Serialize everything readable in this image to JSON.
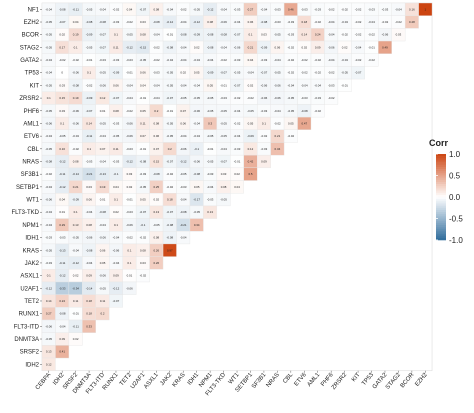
{
  "chart_data": {
    "type": "heatmap",
    "layout": "lower-triangle correlation matrix",
    "rows": [
      "NF1",
      "EZH2",
      "BCOR",
      "STAG2",
      "GATA2",
      "TP53",
      "KIT",
      "ZRSR2",
      "PHF6",
      "AML1",
      "ETV6",
      "CBL",
      "NRAS",
      "SF3B1",
      "SETBP1",
      "WT1",
      "FLT3-TKD",
      "NPM1",
      "IDH1",
      "KRAS",
      "JAK2",
      "ASXL1",
      "U2AF1",
      "TET2",
      "RUNX1",
      "FLT3-ITD",
      "DNMT3A",
      "SRSF2",
      "IDH2"
    ],
    "columns": [
      "CEBPA",
      "IDH2",
      "SRSF2",
      "DNMT3A",
      "FLT3-ITD",
      "RUNX1",
      "TET2",
      "U2AF1",
      "ASXL1",
      "JAK2",
      "KRAS",
      "IDH1",
      "NPM1",
      "FLT3-TKD",
      "WT1",
      "SETBP1",
      "SF3B1",
      "NRAS",
      "CBL",
      "ETV6",
      "AML1",
      "PHF6",
      "ZRSR2",
      "KIT",
      "TP53",
      "GATA2",
      "STAG2",
      "BCOR",
      "EZH2"
    ],
    "values": [
      [
        -0.04,
        -0.08,
        -0.11,
        -0.05,
        -0.04,
        -0.02,
        0.04,
        -0.07,
        0.08,
        -0.04,
        -0.02,
        -0.05,
        -0.12,
        -0.04,
        -0.03,
        0.27,
        -0.04,
        -0.03,
        0.46,
        -0.03,
        -0.03,
        -0.02,
        -0.02,
        -0.02,
        -0.03,
        -0.03,
        -0.04,
        0.16,
        1
      ],
      [
        -0.05,
        -0.07,
        0.04,
        -0.08,
        -0.08,
        -0.03,
        -0.02,
        0.03,
        -0.08,
        -0.12,
        -0.04,
        -0.12,
        0.08,
        -0.06,
        -0.04,
        0.06,
        -0.08,
        -0.03,
        -0.03,
        0.18,
        -0.02,
        -0.04,
        -0.04,
        -0.02,
        -0.04,
        -0.02,
        -0.02,
        0.28
      ],
      [
        -0.05,
        0.02,
        0.19,
        -0.09,
        -0.07,
        0.1,
        -0.05,
        0.08,
        -0.04,
        -0.01,
        -0.08,
        -0.09,
        -0.08,
        -0.08,
        -0.07,
        0.1,
        0.03,
        -0.05,
        -0.03,
        0.14,
        0.24,
        -0.04,
        -0.02,
        -0.02,
        -0.02,
        -0.06,
        0.03
      ],
      [
        -0.05,
        0.17,
        0.1,
        -0.05,
        -0.07,
        0.11,
        -0.12,
        -0.15,
        -0.02,
        -0.08,
        -0.04,
        0.02,
        -0.08,
        -0.04,
        -0.06,
        0.21,
        -0.09,
        0.06,
        -0.02,
        0.02,
        0.09,
        -0.06,
        0.02,
        -0.04,
        -0.01,
        0.49
      ],
      [
        -0.04,
        -0.02,
        -0.02,
        -0.01,
        -0.03,
        -0.03,
        -0.03,
        -0.05,
        -0.02,
        -0.04,
        -0.04,
        -0.04,
        -0.04,
        -0.02,
        -0.03,
        0.04,
        -0.03,
        -0.04,
        -0.02,
        -0.02,
        -0.02,
        -0.04,
        -0.04,
        -0.02,
        -0.02
      ],
      [
        -0.04,
        0,
        -0.06,
        0.1,
        -0.05,
        -0.09,
        -0.01,
        0.06,
        -0.03,
        -0.05,
        0.02,
        0.05,
        -0.09,
        -0.07,
        -0.05,
        -0.04,
        -0.07,
        -0.05,
        -0.02,
        -0.02,
        -0.02,
        -0.02,
        -0.05,
        -0.07
      ],
      [
        -0.05,
        0.03,
        -0.08,
        -0.02,
        -0.06,
        0.06,
        -0.04,
        0.04,
        -0.04,
        -0.05,
        -0.04,
        -0.04,
        0.05,
        -0.01,
        -0.07,
        0.02,
        -0.06,
        -0.06,
        -0.04,
        -0.04,
        -0.04,
        -0.03,
        -0.01
      ],
      [
        0.1,
        0.15,
        0.19,
        -0.09,
        0.12,
        -0.07,
        -0.04,
        -0.01,
        -0.04,
        -0.07,
        -0.05,
        -0.05,
        -0.05,
        -0.03,
        -0.02,
        -0.02,
        -0.06,
        -0.06,
        -0.05,
        -0.03,
        -0.03,
        -0.02
      ],
      [
        -0.05,
        0.03,
        -0.06,
        -0.07,
        0.01,
        0.08,
        -0.02,
        0.05,
        0.2,
        -0.01,
        0.07,
        -0.06,
        -0.05,
        -0.05,
        -0.04,
        -0.05,
        -0.03,
        -0.04,
        -0.05,
        -0.08,
        -0.02
      ],
      [
        -0.06,
        0.1,
        -0.06,
        0.14,
        -0.05,
        -0.03,
        -0.06,
        0.11,
        0.08,
        -0.05,
        0.06,
        -0.04,
        0.3,
        -0.05,
        -0.02,
        0.05,
        0.1,
        -0.02,
        0.05,
        0.47
      ],
      [
        -0.04,
        -0.05,
        -0.04,
        -0.11,
        -0.04,
        -0.05,
        -0.06,
        0.07,
        0.06,
        -0.05,
        -0.04,
        -0.04,
        -0.05,
        -0.05,
        -0.04,
        -0.09,
        -0.02,
        0.21,
        -0.02
      ],
      [
        -0.05,
        0.16,
        -0.02,
        0.1,
        0.07,
        0.11,
        -0.03,
        -0.01,
        0.07,
        0.2,
        -0.06,
        -0.1,
        -0.01,
        -0.04,
        -0.03,
        0.12,
        -0.03,
        0.34
      ],
      [
        -0.08,
        -0.12,
        0.08,
        -0.03,
        -0.04,
        -0.03,
        -0.12,
        -0.08,
        0.15,
        -0.07,
        -0.12,
        -0.06,
        -0.05,
        -0.07,
        -0.01,
        0.42,
        0.09
      ],
      [
        -0.02,
        -0.11,
        -0.14,
        -0.21,
        -0.13,
        -0.1,
        0.03,
        -0.03,
        -0.08,
        -0.02,
        -0.05,
        -0.08,
        -0.03,
        0.03,
        0.02,
        0.5
      ],
      [
        -0.04,
        -0.12,
        0.21,
        0.03,
        0.19,
        0.04,
        0.02,
        -0.05,
        0.25,
        -0.02,
        -0.03,
        0.05,
        -0.04,
        0.08,
        0.04
      ],
      [
        -0.06,
        0.04,
        -0.09,
        0.06,
        0.01,
        0.1,
        -0.01,
        0.05,
        0.02,
        0.18,
        -0.04,
        -0.17,
        -0.03,
        -0.05
      ],
      [
        -0.04,
        0.01,
        0.1,
        -0.04,
        -0.08,
        0.02,
        -0.03,
        -0.07,
        0.13,
        -0.07,
        -0.08,
        -0.05,
        0.13
      ],
      [
        -0.04,
        0.29,
        0.13,
        0.08,
        -0.04,
        0.1,
        -0.06,
        -0.1,
        -0.05,
        -0.08,
        -0.21,
        0.34
      ],
      [
        -0.03,
        -0.03,
        -0.05,
        -0.06,
        -0.06,
        -0.04,
        -0.02,
        -0.02,
        0.08,
        -0.08,
        -0.04
      ],
      [
        -0.05,
        -0.13,
        -0.04,
        -0.08,
        0.06,
        -0.06,
        0.1,
        0.08,
        0.26,
        0.97
      ],
      [
        -0.03,
        -0.11,
        -0.12,
        -0.04,
        0.05,
        -0.04,
        0.1,
        0.03,
        0.26
      ],
      [
        0.1,
        -0.12,
        0.02,
        0.09,
        -0.06,
        0.09,
        0.01,
        -0.02
      ],
      [
        -0.12,
        -0.33,
        -0.34,
        -0.14,
        -0.05,
        -0.12,
        -0.06
      ],
      [
        0.14,
        0.24,
        0.11,
        0.18,
        0.11,
        -0.07
      ],
      [
        0.27,
        -0.08,
        -0.01,
        0.18,
        0.2
      ],
      [
        -0.06,
        -0.04,
        -0.11,
        0.33
      ],
      [
        -0.05,
        0.09,
        0.02
      ],
      [
        0.13,
        0.41
      ],
      [
        0.12
      ]
    ],
    "colorbar": {
      "title": "Corr",
      "ticks": [
        "1.0",
        "0.5",
        "0.0",
        "-0.5",
        "-1.0"
      ],
      "tick_values": [
        1,
        0.5,
        0,
        -0.5,
        -1
      ],
      "range": [
        -1,
        1
      ],
      "colors": {
        "neg": "#2f6c9c",
        "mid": "#ffffff",
        "pos": "#cc4411"
      }
    }
  }
}
